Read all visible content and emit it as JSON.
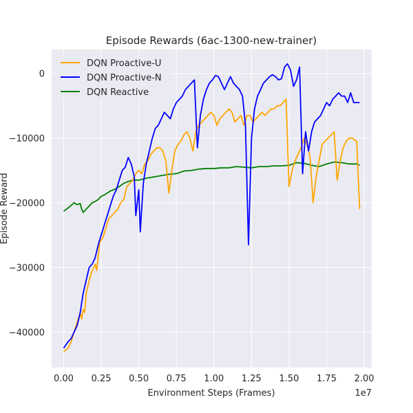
{
  "chart_data": {
    "type": "line",
    "title": "Episode Rewards (6ac-1300-new-trainer)",
    "xlabel": "Environment Steps (Frames)",
    "ylabel": "Episode Reward",
    "x_offset_label": "1e7",
    "xlim": [
      -0.08,
      2.05
    ],
    "ylim": [
      -45500,
      3700
    ],
    "x_ticks": [
      0.0,
      0.25,
      0.5,
      0.75,
      1.0,
      1.25,
      1.5,
      1.75,
      2.0
    ],
    "x_tick_labels": [
      "0.00",
      "0.25",
      "0.50",
      "0.75",
      "1.00",
      "1.25",
      "1.50",
      "1.75",
      "2.00"
    ],
    "y_ticks": [
      -40000,
      -30000,
      -20000,
      -10000,
      0
    ],
    "y_tick_labels": [
      "−40000",
      "−30000",
      "−20000",
      "−10000",
      "0"
    ],
    "grid": true,
    "legend_position": "top-left",
    "series": [
      {
        "name": "DQN Proactive-U",
        "color": "#ffa500",
        "points": [
          [
            0.0,
            -43000
          ],
          [
            0.03,
            -42500
          ],
          [
            0.05,
            -41500
          ],
          [
            0.07,
            -40000
          ],
          [
            0.09,
            -38500
          ],
          [
            0.11,
            -37000
          ],
          [
            0.12,
            -38000
          ],
          [
            0.13,
            -36500
          ],
          [
            0.14,
            -37000
          ],
          [
            0.15,
            -34000
          ],
          [
            0.17,
            -32000
          ],
          [
            0.19,
            -30500
          ],
          [
            0.2,
            -30000
          ],
          [
            0.21,
            -29500
          ],
          [
            0.22,
            -30500
          ],
          [
            0.24,
            -26000
          ],
          [
            0.26,
            -25500
          ],
          [
            0.28,
            -24000
          ],
          [
            0.3,
            -22500
          ],
          [
            0.32,
            -22000
          ],
          [
            0.34,
            -21500
          ],
          [
            0.36,
            -21000
          ],
          [
            0.38,
            -20000
          ],
          [
            0.4,
            -19500
          ],
          [
            0.42,
            -17500
          ],
          [
            0.44,
            -17000
          ],
          [
            0.46,
            -16500
          ],
          [
            0.48,
            -15500
          ],
          [
            0.5,
            -15000
          ],
          [
            0.52,
            -15500
          ],
          [
            0.54,
            -14000
          ],
          [
            0.56,
            -13500
          ],
          [
            0.58,
            -12500
          ],
          [
            0.6,
            -12000
          ],
          [
            0.62,
            -11500
          ],
          [
            0.64,
            -11500
          ],
          [
            0.66,
            -12000
          ],
          [
            0.68,
            -13500
          ],
          [
            0.7,
            -18500
          ],
          [
            0.72,
            -15000
          ],
          [
            0.74,
            -12000
          ],
          [
            0.76,
            -11000
          ],
          [
            0.78,
            -10500
          ],
          [
            0.8,
            -9500
          ],
          [
            0.82,
            -9000
          ],
          [
            0.84,
            -10000
          ],
          [
            0.86,
            -12000
          ],
          [
            0.88,
            -9000
          ],
          [
            0.9,
            -8000
          ],
          [
            0.92,
            -7500
          ],
          [
            0.94,
            -7000
          ],
          [
            0.96,
            -6500
          ],
          [
            0.98,
            -6000
          ],
          [
            1.0,
            -6500
          ],
          [
            1.02,
            -8000
          ],
          [
            1.04,
            -7000
          ],
          [
            1.06,
            -6500
          ],
          [
            1.08,
            -6000
          ],
          [
            1.1,
            -5500
          ],
          [
            1.12,
            -6000
          ],
          [
            1.14,
            -7500
          ],
          [
            1.16,
            -7000
          ],
          [
            1.18,
            -6500
          ],
          [
            1.2,
            -8000
          ],
          [
            1.22,
            -6500
          ],
          [
            1.24,
            -6500
          ],
          [
            1.26,
            -7500
          ],
          [
            1.28,
            -7000
          ],
          [
            1.3,
            -6500
          ],
          [
            1.32,
            -6000
          ],
          [
            1.34,
            -6500
          ],
          [
            1.36,
            -6000
          ],
          [
            1.38,
            -5500
          ],
          [
            1.4,
            -5500
          ],
          [
            1.42,
            -5000
          ],
          [
            1.44,
            -5000
          ],
          [
            1.46,
            -4500
          ],
          [
            1.48,
            -4000
          ],
          [
            1.5,
            -17500
          ],
          [
            1.52,
            -15000
          ],
          [
            1.54,
            -13500
          ],
          [
            1.56,
            -12500
          ],
          [
            1.58,
            -11500
          ],
          [
            1.6,
            -10000
          ],
          [
            1.62,
            -11000
          ],
          [
            1.64,
            -13000
          ],
          [
            1.66,
            -20000
          ],
          [
            1.68,
            -16000
          ],
          [
            1.7,
            -13500
          ],
          [
            1.72,
            -11000
          ],
          [
            1.74,
            -10500
          ],
          [
            1.76,
            -10000
          ],
          [
            1.78,
            -9500
          ],
          [
            1.8,
            -9000
          ],
          [
            1.82,
            -16500
          ],
          [
            1.84,
            -13500
          ],
          [
            1.86,
            -11500
          ],
          [
            1.88,
            -10500
          ],
          [
            1.9,
            -10000
          ],
          [
            1.92,
            -10000
          ],
          [
            1.95,
            -10500
          ],
          [
            1.97,
            -21000
          ]
        ]
      },
      {
        "name": "DQN Proactive-N",
        "color": "#0000ff",
        "points": [
          [
            0.0,
            -42500
          ],
          [
            0.03,
            -41500
          ],
          [
            0.05,
            -41000
          ],
          [
            0.07,
            -40000
          ],
          [
            0.09,
            -39000
          ],
          [
            0.11,
            -37000
          ],
          [
            0.13,
            -34000
          ],
          [
            0.15,
            -32000
          ],
          [
            0.17,
            -30000
          ],
          [
            0.19,
            -29500
          ],
          [
            0.21,
            -28500
          ],
          [
            0.23,
            -26500
          ],
          [
            0.25,
            -25000
          ],
          [
            0.27,
            -23500
          ],
          [
            0.29,
            -22000
          ],
          [
            0.31,
            -20500
          ],
          [
            0.33,
            -19000
          ],
          [
            0.35,
            -18000
          ],
          [
            0.37,
            -16500
          ],
          [
            0.39,
            -15000
          ],
          [
            0.41,
            -14500
          ],
          [
            0.43,
            -13000
          ],
          [
            0.45,
            -14000
          ],
          [
            0.47,
            -16000
          ],
          [
            0.48,
            -22000
          ],
          [
            0.5,
            -18000
          ],
          [
            0.51,
            -24500
          ],
          [
            0.53,
            -17000
          ],
          [
            0.55,
            -14000
          ],
          [
            0.57,
            -12000
          ],
          [
            0.59,
            -10000
          ],
          [
            0.61,
            -8500
          ],
          [
            0.63,
            -8000
          ],
          [
            0.65,
            -7000
          ],
          [
            0.67,
            -6000
          ],
          [
            0.69,
            -6500
          ],
          [
            0.71,
            -7000
          ],
          [
            0.73,
            -5500
          ],
          [
            0.75,
            -4500
          ],
          [
            0.77,
            -4000
          ],
          [
            0.79,
            -3500
          ],
          [
            0.81,
            -2500
          ],
          [
            0.83,
            -2000
          ],
          [
            0.85,
            -1500
          ],
          [
            0.87,
            -1000
          ],
          [
            0.89,
            -11500
          ],
          [
            0.91,
            -6500
          ],
          [
            0.93,
            -4000
          ],
          [
            0.95,
            -2500
          ],
          [
            0.97,
            -1500
          ],
          [
            0.99,
            -1000
          ],
          [
            1.01,
            -300
          ],
          [
            1.03,
            -500
          ],
          [
            1.05,
            -1500
          ],
          [
            1.07,
            -2500
          ],
          [
            1.09,
            -1500
          ],
          [
            1.11,
            -500
          ],
          [
            1.13,
            -1500
          ],
          [
            1.15,
            -2000
          ],
          [
            1.17,
            -2500
          ],
          [
            1.19,
            -3500
          ],
          [
            1.21,
            -8000
          ],
          [
            1.23,
            -26500
          ],
          [
            1.25,
            -10000
          ],
          [
            1.27,
            -5500
          ],
          [
            1.29,
            -3500
          ],
          [
            1.31,
            -2500
          ],
          [
            1.33,
            -1500
          ],
          [
            1.35,
            -1000
          ],
          [
            1.37,
            -500
          ],
          [
            1.39,
            -200
          ],
          [
            1.41,
            -500
          ],
          [
            1.43,
            -1000
          ],
          [
            1.45,
            -800
          ],
          [
            1.47,
            1000
          ],
          [
            1.49,
            1500
          ],
          [
            1.51,
            500
          ],
          [
            1.53,
            -2000
          ],
          [
            1.55,
            -1000
          ],
          [
            1.57,
            1000
          ],
          [
            1.59,
            -15500
          ],
          [
            1.61,
            -9000
          ],
          [
            1.63,
            -12000
          ],
          [
            1.65,
            -9000
          ],
          [
            1.67,
            -7500
          ],
          [
            1.69,
            -7000
          ],
          [
            1.71,
            -6500
          ],
          [
            1.73,
            -5500
          ],
          [
            1.75,
            -4500
          ],
          [
            1.77,
            -5000
          ],
          [
            1.79,
            -4000
          ],
          [
            1.81,
            -3500
          ],
          [
            1.83,
            -3000
          ],
          [
            1.85,
            -3500
          ],
          [
            1.87,
            -3500
          ],
          [
            1.89,
            -4500
          ],
          [
            1.91,
            -3000
          ],
          [
            1.93,
            -4500
          ],
          [
            1.95,
            -4500
          ],
          [
            1.97,
            -4500
          ]
        ]
      },
      {
        "name": "DQN Reactive",
        "color": "#008000",
        "points": [
          [
            0.0,
            -21300
          ],
          [
            0.03,
            -20800
          ],
          [
            0.05,
            -20400
          ],
          [
            0.07,
            -20000
          ],
          [
            0.09,
            -20300
          ],
          [
            0.11,
            -20100
          ],
          [
            0.12,
            -21000
          ],
          [
            0.13,
            -21500
          ],
          [
            0.15,
            -21000
          ],
          [
            0.17,
            -20500
          ],
          [
            0.19,
            -20000
          ],
          [
            0.21,
            -19800
          ],
          [
            0.23,
            -19500
          ],
          [
            0.25,
            -19000
          ],
          [
            0.27,
            -18800
          ],
          [
            0.29,
            -18500
          ],
          [
            0.31,
            -18200
          ],
          [
            0.33,
            -18000
          ],
          [
            0.35,
            -17800
          ],
          [
            0.37,
            -17500
          ],
          [
            0.4,
            -17000
          ],
          [
            0.43,
            -16700
          ],
          [
            0.46,
            -16500
          ],
          [
            0.5,
            -16500
          ],
          [
            0.55,
            -16200
          ],
          [
            0.6,
            -16000
          ],
          [
            0.65,
            -15800
          ],
          [
            0.7,
            -15600
          ],
          [
            0.75,
            -15500
          ],
          [
            0.8,
            -15100
          ],
          [
            0.85,
            -15000
          ],
          [
            0.9,
            -14800
          ],
          [
            0.95,
            -14700
          ],
          [
            1.0,
            -14700
          ],
          [
            1.05,
            -14600
          ],
          [
            1.1,
            -14600
          ],
          [
            1.15,
            -14400
          ],
          [
            1.2,
            -14500
          ],
          [
            1.25,
            -14600
          ],
          [
            1.3,
            -14400
          ],
          [
            1.35,
            -14400
          ],
          [
            1.4,
            -14300
          ],
          [
            1.45,
            -14300
          ],
          [
            1.5,
            -14200
          ],
          [
            1.55,
            -13800
          ],
          [
            1.6,
            -13900
          ],
          [
            1.65,
            -14200
          ],
          [
            1.7,
            -14400
          ],
          [
            1.75,
            -14000
          ],
          [
            1.8,
            -13700
          ],
          [
            1.85,
            -13800
          ],
          [
            1.9,
            -14000
          ],
          [
            1.95,
            -14000
          ],
          [
            1.97,
            -14200
          ]
        ]
      }
    ]
  }
}
